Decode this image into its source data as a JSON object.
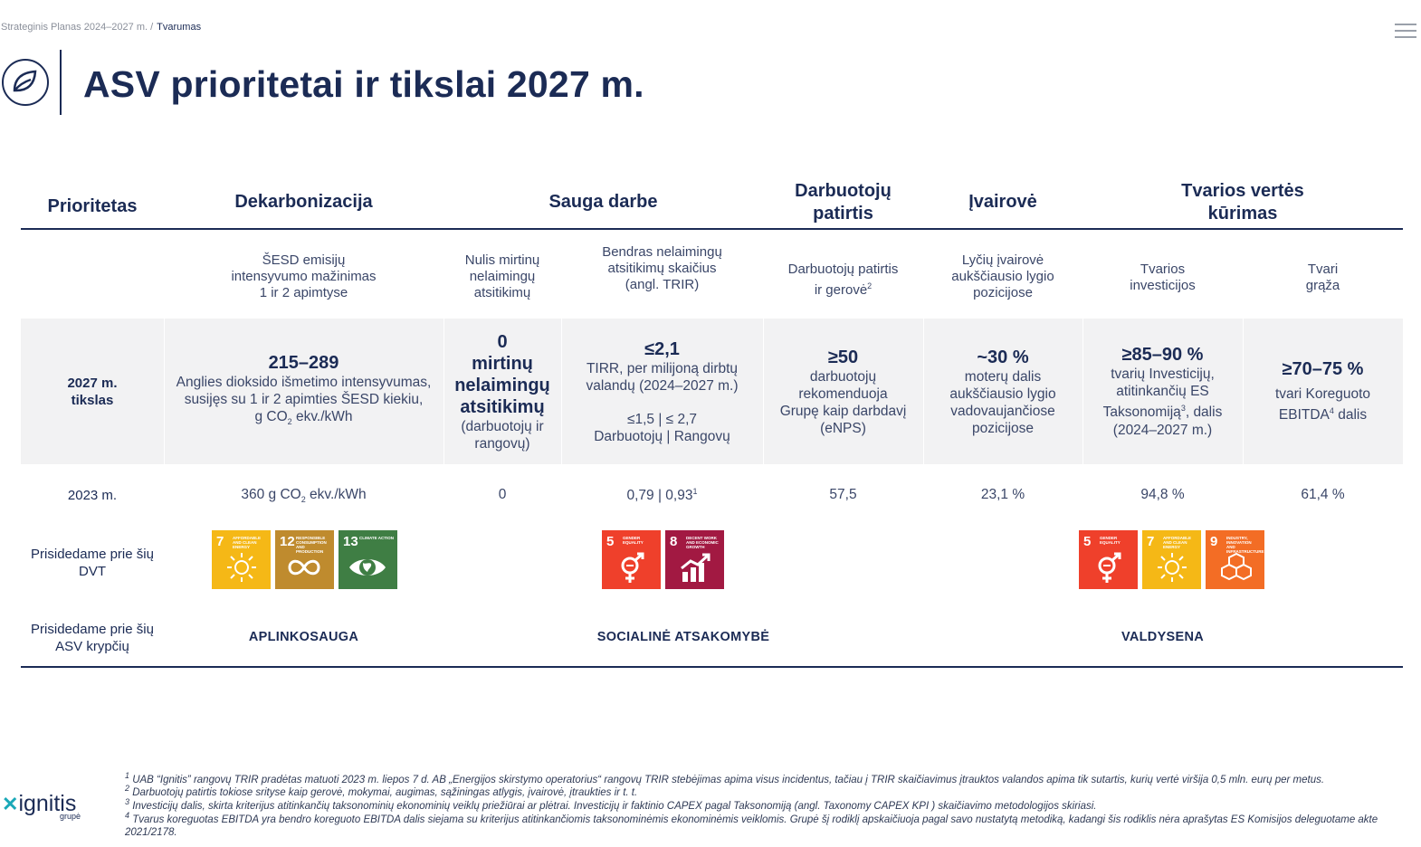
{
  "breadcrumb": {
    "parent": "Strateginis Planas 2024–2027 m. /",
    "current": "Tvarumas"
  },
  "title": "ASV prioritetai ir tikslai 2027 m.",
  "headers": {
    "priority": "Prioritetas",
    "decarb": "Dekarbonizacija",
    "safety": "Sauga darbe",
    "employee_1": "Darbuotojų",
    "employee_2": "patirtis",
    "diversity": "Įvairovė",
    "value_1": "Tvarios vertės",
    "value_2": "kūrimas"
  },
  "subheaders": {
    "ghg": [
      "ŠESD emisijų",
      "intensyvumo mažinimas",
      "1 ir 2 apimtyse"
    ],
    "fatal": [
      "Nulis mirtinų",
      "nelaimingų",
      "atsitikimų"
    ],
    "trir": [
      "Bendras nelaimingų",
      "atsitikimų skaičius",
      "(angl. TRIR)"
    ],
    "experience": [
      "Darbuotojų patirtis",
      "ir gerovė",
      "2"
    ],
    "gender": [
      "Lyčių įvairovė",
      "aukščiausio lygio",
      "pozicijose"
    ],
    "investments": [
      "Tvarios",
      "investicijos"
    ],
    "return": [
      "Tvari",
      "grąža"
    ]
  },
  "target_row": {
    "label": [
      "2027 m.",
      "tikslas"
    ],
    "decarb": {
      "big": "215–289",
      "lines": [
        "Anglies dioksido išmetimo intensyvumas,",
        "susijęs su 1 ir 2 apimties ŠESD kiekiu,"
      ],
      "unit_a": "g CO",
      "unit_sub": "2",
      "unit_b": " ekv./kWh"
    },
    "fatal": {
      "big": [
        "0",
        "mirtinų",
        "nelaimingų",
        "atsitikimų"
      ],
      "lines": [
        "(darbuotojų ir",
        "rangovų)"
      ]
    },
    "trir": {
      "big": "≤2,1",
      "lines": [
        "TIRR, per milijoną dirbtų",
        "valandų (2024–2027 m.)"
      ],
      "line2": "≤1,5 | ≤ 2,7",
      "line3": "Darbuotojų | Rangovų"
    },
    "experience": {
      "big": "≥50",
      "lines": [
        "darbuotojų",
        "rekomenduoja",
        "Grupę kaip darbdavį",
        "(eNPS)"
      ]
    },
    "gender": {
      "big": "~30 %",
      "lines": [
        "moterų dalis",
        "aukščiausio lygio",
        "vadovaujančiose",
        "pozicijose"
      ]
    },
    "investments": {
      "big": "≥85–90 %",
      "l1": "tvarių Investicijų,",
      "l2": "atitinkančių ES",
      "l3a": "Taksonomiją",
      "l3sup": "3",
      "l3b": ", dalis",
      "l4": "(2024–2027 m.)"
    },
    "return": {
      "big": "≥70–75 %",
      "l1": "tvari Koreguoto",
      "l2a": "EBITDA",
      "l2sup": "4",
      "l2b": " dalis"
    }
  },
  "actual_row": {
    "label": "2023 m.",
    "decarb_a": "360 g CO",
    "decarb_sub": "2",
    "decarb_b": " ekv./kWh",
    "fatal": "0",
    "trir": "0,79 | 0,93",
    "trir_sup": "1",
    "experience": "57,5",
    "gender": "23,1 %",
    "investments": "94,8 %",
    "return": "61,4 %"
  },
  "sdg_row": {
    "label": [
      "Prisidedame prie šių",
      "DVT"
    ],
    "tiles": [
      {
        "num": "7",
        "text": "AFFORDABLE AND CLEAN ENERGY",
        "color": "#f5b816",
        "icon": "sun-icon"
      },
      {
        "num": "12",
        "text": "RESPONSIBLE CONSUMPTION AND PRODUCTION",
        "color": "#bf8b2e",
        "icon": "infinity-icon"
      },
      {
        "num": "13",
        "text": "CLIMATE ACTION",
        "color": "#3f7e44",
        "icon": "eye-globe-icon"
      },
      {
        "num": "5",
        "text": "GENDER EQUALITY",
        "color": "#ef402b",
        "icon": "gender-icon"
      },
      {
        "num": "8",
        "text": "DECENT WORK AND ECONOMIC GROWTH",
        "color": "#a21942",
        "icon": "growth-chart-icon"
      },
      {
        "num": "5",
        "text": "GENDER EQUALITY",
        "color": "#ef402b",
        "icon": "gender-icon"
      },
      {
        "num": "7",
        "text": "AFFORDABLE AND CLEAN ENERGY",
        "color": "#f5b816",
        "icon": "sun-icon"
      },
      {
        "num": "9",
        "text": "INDUSTRY, INNOVATION AND INFRASTRUCTURE",
        "color": "#f36d25",
        "icon": "cubes-icon"
      }
    ]
  },
  "direction_row": {
    "label": [
      "Prisidedame prie šių",
      "ASV krypčių"
    ],
    "environment": "APLINKOSAUGA",
    "social": "SOCIALINĖ ATSAKOMYBĖ",
    "governance": "VALDYSENA"
  },
  "footnotes": [
    {
      "sup": "1",
      "text": " UAB “Ignitis” rangovų TRIR pradėtas matuoti 2023 m. liepos 7 d. AB „Energijos skirstymo operatorius“ rangovų TRIR stebėjimas apima visus incidentus, tačiau į TRIR skaičiavimus įtrauktos valandos apima tik sutartis, kurių vertė viršija 0,5 mln. eurų per metus."
    },
    {
      "sup": "2",
      "text": " Darbuotojų patirtis tokiose srityse kaip gerovė, mokymai, augimas, sąžiningas atlygis, įvairovė, įtraukties ir t. t."
    },
    {
      "sup": "3",
      "text": " Investicijų dalis, skirta kriterijus atitinkančių taksonominių ekonominių veiklų priežiūrai ar plėtrai. Investicijų ir faktinio CAPEX pagal Taksonomiją (angl. Taxonomy CAPEX KPI ) skaičiavimo metodologijos skiriasi."
    },
    {
      "sup": "4",
      "text": " Tvarus koreguotas EBITDA yra bendro koreguoto EBITDA dalis siejama su kriterijus atitinkančiomis taksonominėmis ekonominėmis veiklomis. Grupė šį rodiklį apskaičiuoja pagal savo nustatytą metodiką, kadangi šis rodiklis nėra aprašytas ES Komisijos deleguotame akte 2021/2178."
    }
  ],
  "brand": {
    "name": "ignitis",
    "sub": "grupė"
  }
}
